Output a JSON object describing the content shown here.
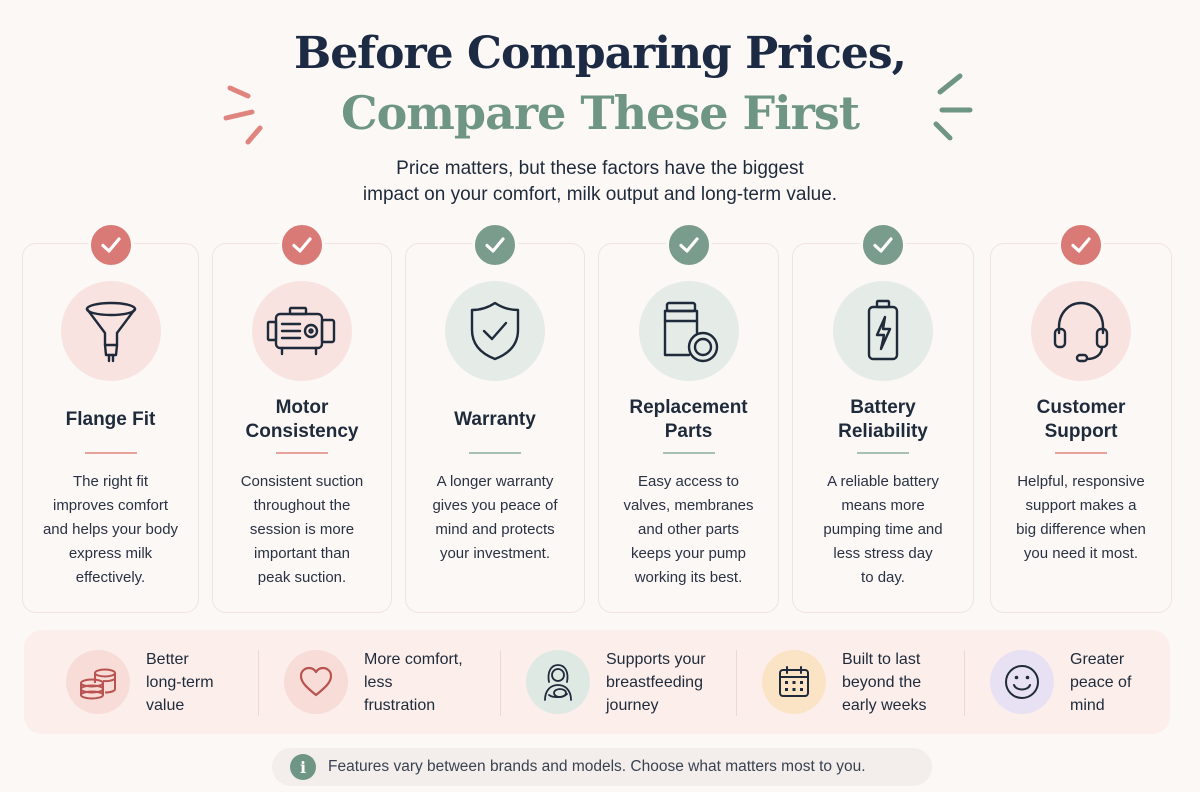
{
  "header": {
    "title_line1": "Before Comparing Prices,",
    "title_line2": "Compare These First",
    "subtitle_line1": "Price matters, but these factors have the biggest",
    "subtitle_line2": "impact on your comfort, milk output and long-term value."
  },
  "colors": {
    "navy": "#1d2a44",
    "sage": "#6f9684",
    "coral": "#da7a76",
    "background": "#fbf8f6"
  },
  "cards": [
    {
      "title_line1": "Flange Fit",
      "title_line2": "",
      "icon": "funnel-icon",
      "accent": "coral",
      "desc_lines": [
        "The right fit",
        "improves comfort",
        "and helps your body",
        "express milk",
        "effectively."
      ]
    },
    {
      "title_line1": "Motor",
      "title_line2": "Consistency",
      "icon": "motor-icon",
      "accent": "coral",
      "desc_lines": [
        "Consistent suction",
        "throughout the",
        "session is more",
        "important than",
        "peak suction."
      ]
    },
    {
      "title_line1": "Warranty",
      "title_line2": "",
      "icon": "shield-check-icon",
      "accent": "sage",
      "desc_lines": [
        "A longer warranty",
        "gives you peace of",
        "mind and protects",
        "your investment."
      ]
    },
    {
      "title_line1": "Replacement",
      "title_line2": "Parts",
      "icon": "parts-icon",
      "accent": "sage",
      "desc_lines": [
        "Easy access to",
        "valves, membranes",
        "and other parts",
        "keeps your pump",
        "working its best."
      ]
    },
    {
      "title_line1": "Battery",
      "title_line2": "Reliability",
      "icon": "battery-icon",
      "accent": "sage",
      "desc_lines": [
        "A reliable battery",
        "means more",
        "pumping time and",
        "less stress day",
        "to day."
      ]
    },
    {
      "title_line1": "Customer",
      "title_line2": "Support",
      "icon": "headset-icon",
      "accent": "coral",
      "desc_lines": [
        "Helpful, responsive",
        "support makes a",
        "big difference when",
        "you need it most."
      ]
    }
  ],
  "benefits": [
    {
      "lines": [
        "Better",
        "long-term",
        "value"
      ],
      "icon": "coins-icon"
    },
    {
      "lines": [
        "More comfort,",
        "less",
        "frustration"
      ],
      "icon": "heart-icon"
    },
    {
      "lines": [
        "Supports your",
        "breastfeeding",
        "journey"
      ],
      "icon": "mother-icon"
    },
    {
      "lines": [
        "Built to last",
        "beyond the",
        "early weeks"
      ],
      "icon": "calendar-icon"
    },
    {
      "lines": [
        "Greater",
        "peace of",
        "mind"
      ],
      "icon": "smiley-icon"
    }
  ],
  "footer": {
    "info_glyph": "i",
    "note": "Features vary between brands and models. Choose what matters most to you."
  }
}
